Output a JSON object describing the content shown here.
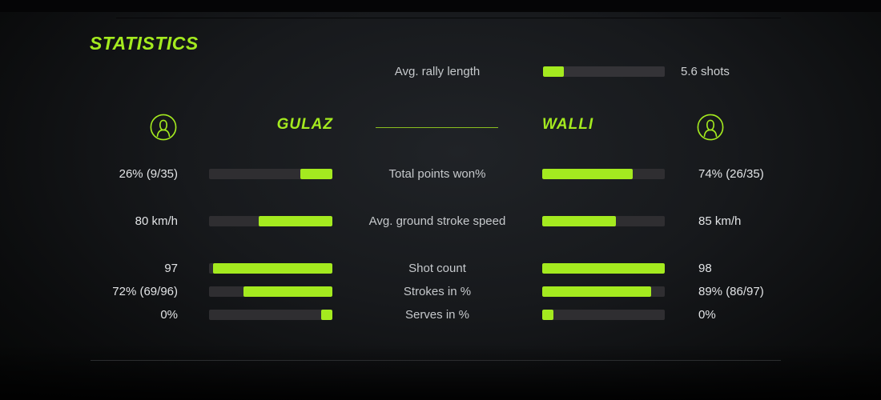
{
  "accent_color": "#a4ea1f",
  "track_color": "#2f2e31",
  "title": "STATISTICS",
  "header": {
    "left_player": "GULAZ",
    "right_player": "WALLI",
    "left_avatar_icon": "person-icon",
    "right_avatar_icon": "person-icon"
  },
  "rally": {
    "label": "Avg. rally length",
    "value": "5.6 shots",
    "fill_pct": 17
  },
  "chart_data": {
    "type": "bar",
    "title": "STATISTICS",
    "categories": [
      "Total points won%",
      "Avg. ground stroke speed",
      "Shot count",
      "Strokes in %",
      "Serves in %"
    ],
    "series": [
      {
        "name": "GULAZ",
        "display_values": [
          "26% (9/35)",
          "80 km/h",
          "97",
          "72% (69/96)",
          "0%"
        ],
        "bar_fill_pct": [
          26,
          60,
          97,
          72,
          9
        ]
      },
      {
        "name": "WALLI",
        "display_values": [
          "74% (26/35)",
          "85 km/h",
          "98",
          "89% (86/97)",
          "0%"
        ],
        "bar_fill_pct": [
          74,
          60,
          100,
          89,
          9
        ]
      }
    ]
  },
  "stats": [
    {
      "label": "Total points won%",
      "left_value": "26% (9/35)",
      "right_value": "74% (26/35)",
      "left_pct": 26,
      "right_pct": 74
    },
    {
      "label": "Avg. ground stroke speed",
      "left_value": "80 km/h",
      "right_value": "85 km/h",
      "left_pct": 60,
      "right_pct": 60
    },
    {
      "label": "Shot count",
      "left_value": "97",
      "right_value": "98",
      "left_pct": 97,
      "right_pct": 100
    },
    {
      "label": "Strokes in %",
      "left_value": "72% (69/96)",
      "right_value": "89% (86/97)",
      "left_pct": 72,
      "right_pct": 89
    },
    {
      "label": "Serves in %",
      "left_value": "0%",
      "right_value": "0%",
      "left_pct": 9,
      "right_pct": 9
    }
  ]
}
